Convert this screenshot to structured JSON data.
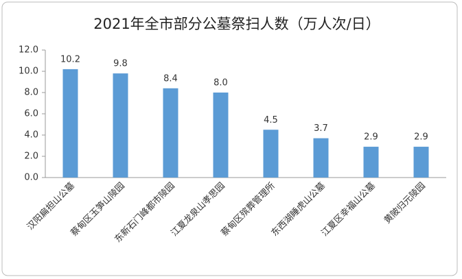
{
  "chart_data": {
    "type": "bar",
    "title": "2021年全市部分公墓祭扫人数（万人次/日）",
    "categories": [
      "汉阳扁担山公墓",
      "蔡甸区玉笋山陵园",
      "东新石门峰都市陵园",
      "江夏龙泉山孝思园",
      "蔡甸区殡葬管理所",
      "东西湖睡虎山公墓",
      "江夏区幸福山公墓",
      "黄陂归元陵园"
    ],
    "values": [
      10.2,
      9.8,
      8.4,
      8.0,
      4.5,
      3.7,
      2.9,
      2.9
    ],
    "value_labels": [
      "10.2",
      "9.8",
      "8.4",
      "8.0",
      "4.5",
      "3.7",
      "2.9",
      "2.9"
    ],
    "color": "#5b9bd5",
    "ylim": [
      0,
      12
    ],
    "yticks": [
      {
        "value": 0,
        "label": "0.0"
      },
      {
        "value": 2,
        "label": "2.0"
      },
      {
        "value": 4,
        "label": "4.0"
      },
      {
        "value": 6,
        "label": "6.0"
      },
      {
        "value": 8,
        "label": "8.0"
      },
      {
        "value": 10,
        "label": "10.0"
      },
      {
        "value": 12,
        "label": "12.0"
      }
    ],
    "grid": false
  }
}
